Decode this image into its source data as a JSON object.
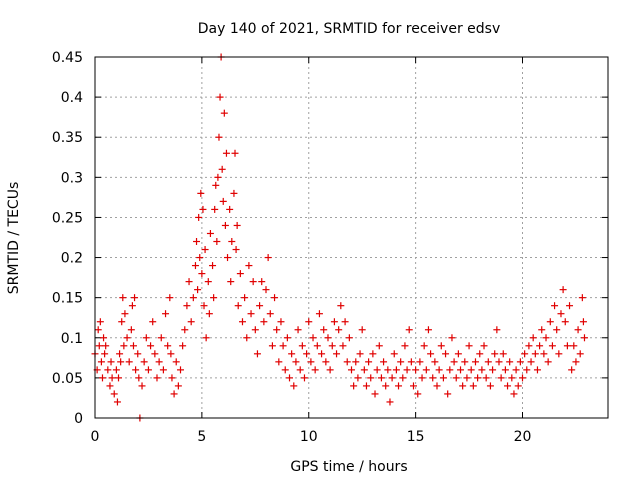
{
  "chart_data": {
    "type": "scatter",
    "title": "Day 140 of 2021, SRMTID for receiver edsv",
    "xlabel": "GPS time / hours",
    "ylabel": "SRMTID / TECUs",
    "xlim": [
      0,
      24
    ],
    "ylim": [
      0,
      0.45
    ],
    "xticks": [
      "0",
      "5",
      "10",
      "15",
      "20"
    ],
    "yticks": [
      "0",
      "0.05",
      "0.1",
      "0.15",
      "0.2",
      "0.25",
      "0.3",
      "0.35",
      "0.4",
      "0.45"
    ],
    "grid": true,
    "marker": "+",
    "color": "#e00000",
    "series": [
      {
        "name": "SRMTID",
        "points": [
          [
            0.0,
            0.08
          ],
          [
            0.1,
            0.06
          ],
          [
            0.15,
            0.11
          ],
          [
            0.2,
            0.09
          ],
          [
            0.25,
            0.12
          ],
          [
            0.3,
            0.07
          ],
          [
            0.35,
            0.05
          ],
          [
            0.4,
            0.1
          ],
          [
            0.45,
            0.08
          ],
          [
            0.5,
            0.09
          ],
          [
            0.6,
            0.06
          ],
          [
            0.7,
            0.04
          ],
          [
            0.75,
            0.07
          ],
          [
            0.8,
            0.05
          ],
          [
            0.9,
            0.03
          ],
          [
            1.0,
            0.06
          ],
          [
            1.05,
            0.02
          ],
          [
            1.1,
            0.05
          ],
          [
            1.15,
            0.08
          ],
          [
            1.2,
            0.07
          ],
          [
            1.25,
            0.12
          ],
          [
            1.3,
            0.15
          ],
          [
            1.35,
            0.09
          ],
          [
            1.4,
            0.13
          ],
          [
            1.5,
            0.1
          ],
          [
            1.6,
            0.07
          ],
          [
            1.7,
            0.11
          ],
          [
            1.75,
            0.14
          ],
          [
            1.8,
            0.09
          ],
          [
            1.85,
            0.15
          ],
          [
            1.9,
            0.06
          ],
          [
            2.0,
            0.08
          ],
          [
            2.05,
            0.05
          ],
          [
            2.1,
            0.0
          ],
          [
            2.2,
            0.04
          ],
          [
            2.3,
            0.07
          ],
          [
            2.4,
            0.1
          ],
          [
            2.5,
            0.06
          ],
          [
            2.6,
            0.09
          ],
          [
            2.7,
            0.12
          ],
          [
            2.8,
            0.08
          ],
          [
            2.9,
            0.05
          ],
          [
            3.0,
            0.07
          ],
          [
            3.1,
            0.1
          ],
          [
            3.2,
            0.06
          ],
          [
            3.3,
            0.13
          ],
          [
            3.4,
            0.09
          ],
          [
            3.5,
            0.15
          ],
          [
            3.55,
            0.08
          ],
          [
            3.6,
            0.05
          ],
          [
            3.7,
            0.03
          ],
          [
            3.8,
            0.07
          ],
          [
            3.9,
            0.04
          ],
          [
            4.0,
            0.06
          ],
          [
            4.1,
            0.09
          ],
          [
            4.2,
            0.11
          ],
          [
            4.3,
            0.14
          ],
          [
            4.4,
            0.17
          ],
          [
            4.5,
            0.12
          ],
          [
            4.6,
            0.15
          ],
          [
            4.7,
            0.19
          ],
          [
            4.75,
            0.22
          ],
          [
            4.8,
            0.16
          ],
          [
            4.85,
            0.25
          ],
          [
            4.9,
            0.2
          ],
          [
            4.95,
            0.28
          ],
          [
            5.0,
            0.18
          ],
          [
            5.05,
            0.26
          ],
          [
            5.1,
            0.14
          ],
          [
            5.15,
            0.21
          ],
          [
            5.2,
            0.1
          ],
          [
            5.3,
            0.17
          ],
          [
            5.35,
            0.13
          ],
          [
            5.4,
            0.23
          ],
          [
            5.5,
            0.19
          ],
          [
            5.55,
            0.15
          ],
          [
            5.6,
            0.26
          ],
          [
            5.65,
            0.29
          ],
          [
            5.7,
            0.22
          ],
          [
            5.75,
            0.3
          ],
          [
            5.8,
            0.35
          ],
          [
            5.85,
            0.4
          ],
          [
            5.9,
            0.45
          ],
          [
            5.95,
            0.31
          ],
          [
            6.0,
            0.27
          ],
          [
            6.05,
            0.38
          ],
          [
            6.1,
            0.24
          ],
          [
            6.15,
            0.33
          ],
          [
            6.2,
            0.2
          ],
          [
            6.3,
            0.26
          ],
          [
            6.35,
            0.17
          ],
          [
            6.4,
            0.22
          ],
          [
            6.5,
            0.28
          ],
          [
            6.55,
            0.33
          ],
          [
            6.6,
            0.21
          ],
          [
            6.65,
            0.24
          ],
          [
            6.7,
            0.14
          ],
          [
            6.8,
            0.18
          ],
          [
            6.9,
            0.12
          ],
          [
            7.0,
            0.15
          ],
          [
            7.1,
            0.1
          ],
          [
            7.2,
            0.19
          ],
          [
            7.3,
            0.13
          ],
          [
            7.4,
            0.17
          ],
          [
            7.5,
            0.11
          ],
          [
            7.6,
            0.08
          ],
          [
            7.7,
            0.14
          ],
          [
            7.8,
            0.17
          ],
          [
            7.9,
            0.12
          ],
          [
            8.0,
            0.16
          ],
          [
            8.1,
            0.2
          ],
          [
            8.2,
            0.13
          ],
          [
            8.3,
            0.09
          ],
          [
            8.4,
            0.15
          ],
          [
            8.5,
            0.11
          ],
          [
            8.6,
            0.07
          ],
          [
            8.7,
            0.12
          ],
          [
            8.8,
            0.09
          ],
          [
            8.9,
            0.06
          ],
          [
            9.0,
            0.1
          ],
          [
            9.1,
            0.05
          ],
          [
            9.2,
            0.08
          ],
          [
            9.3,
            0.04
          ],
          [
            9.4,
            0.07
          ],
          [
            9.5,
            0.11
          ],
          [
            9.6,
            0.06
          ],
          [
            9.7,
            0.09
          ],
          [
            9.8,
            0.05
          ],
          [
            9.9,
            0.08
          ],
          [
            10.0,
            0.12
          ],
          [
            10.1,
            0.07
          ],
          [
            10.2,
            0.1
          ],
          [
            10.3,
            0.06
          ],
          [
            10.4,
            0.09
          ],
          [
            10.5,
            0.13
          ],
          [
            10.6,
            0.08
          ],
          [
            10.7,
            0.11
          ],
          [
            10.8,
            0.07
          ],
          [
            10.9,
            0.1
          ],
          [
            11.0,
            0.06
          ],
          [
            11.1,
            0.09
          ],
          [
            11.2,
            0.12
          ],
          [
            11.3,
            0.08
          ],
          [
            11.4,
            0.11
          ],
          [
            11.5,
            0.14
          ],
          [
            11.6,
            0.09
          ],
          [
            11.7,
            0.12
          ],
          [
            11.8,
            0.07
          ],
          [
            11.9,
            0.1
          ],
          [
            12.0,
            0.06
          ],
          [
            12.1,
            0.04
          ],
          [
            12.2,
            0.07
          ],
          [
            12.3,
            0.05
          ],
          [
            12.4,
            0.08
          ],
          [
            12.5,
            0.11
          ],
          [
            12.6,
            0.06
          ],
          [
            12.7,
            0.04
          ],
          [
            12.8,
            0.07
          ],
          [
            12.9,
            0.05
          ],
          [
            13.0,
            0.08
          ],
          [
            13.1,
            0.03
          ],
          [
            13.2,
            0.06
          ],
          [
            13.3,
            0.09
          ],
          [
            13.4,
            0.05
          ],
          [
            13.5,
            0.07
          ],
          [
            13.6,
            0.04
          ],
          [
            13.7,
            0.06
          ],
          [
            13.8,
            0.02
          ],
          [
            13.9,
            0.05
          ],
          [
            14.0,
            0.08
          ],
          [
            14.1,
            0.06
          ],
          [
            14.2,
            0.04
          ],
          [
            14.3,
            0.07
          ],
          [
            14.4,
            0.05
          ],
          [
            14.5,
            0.09
          ],
          [
            14.6,
            0.06
          ],
          [
            14.7,
            0.11
          ],
          [
            14.8,
            0.07
          ],
          [
            14.9,
            0.04
          ],
          [
            15.0,
            0.06
          ],
          [
            15.1,
            0.03
          ],
          [
            15.2,
            0.07
          ],
          [
            15.3,
            0.05
          ],
          [
            15.4,
            0.09
          ],
          [
            15.5,
            0.06
          ],
          [
            15.6,
            0.11
          ],
          [
            15.7,
            0.08
          ],
          [
            15.8,
            0.05
          ],
          [
            15.9,
            0.07
          ],
          [
            16.0,
            0.04
          ],
          [
            16.1,
            0.06
          ],
          [
            16.2,
            0.09
          ],
          [
            16.3,
            0.05
          ],
          [
            16.4,
            0.08
          ],
          [
            16.5,
            0.03
          ],
          [
            16.6,
            0.06
          ],
          [
            16.7,
            0.1
          ],
          [
            16.8,
            0.07
          ],
          [
            16.9,
            0.05
          ],
          [
            17.0,
            0.08
          ],
          [
            17.1,
            0.06
          ],
          [
            17.2,
            0.04
          ],
          [
            17.3,
            0.07
          ],
          [
            17.4,
            0.05
          ],
          [
            17.5,
            0.09
          ],
          [
            17.6,
            0.06
          ],
          [
            17.7,
            0.04
          ],
          [
            17.8,
            0.07
          ],
          [
            17.9,
            0.05
          ],
          [
            18.0,
            0.08
          ],
          [
            18.1,
            0.06
          ],
          [
            18.2,
            0.09
          ],
          [
            18.3,
            0.05
          ],
          [
            18.4,
            0.07
          ],
          [
            18.5,
            0.04
          ],
          [
            18.6,
            0.06
          ],
          [
            18.7,
            0.08
          ],
          [
            18.8,
            0.11
          ],
          [
            18.9,
            0.07
          ],
          [
            19.0,
            0.05
          ],
          [
            19.1,
            0.08
          ],
          [
            19.2,
            0.06
          ],
          [
            19.3,
            0.04
          ],
          [
            19.4,
            0.07
          ],
          [
            19.5,
            0.05
          ],
          [
            19.6,
            0.03
          ],
          [
            19.7,
            0.06
          ],
          [
            19.8,
            0.04
          ],
          [
            19.9,
            0.07
          ],
          [
            20.0,
            0.05
          ],
          [
            20.1,
            0.08
          ],
          [
            20.2,
            0.06
          ],
          [
            20.3,
            0.09
          ],
          [
            20.4,
            0.07
          ],
          [
            20.5,
            0.1
          ],
          [
            20.6,
            0.08
          ],
          [
            20.7,
            0.06
          ],
          [
            20.8,
            0.09
          ],
          [
            20.9,
            0.11
          ],
          [
            21.0,
            0.08
          ],
          [
            21.1,
            0.1
          ],
          [
            21.2,
            0.07
          ],
          [
            21.3,
            0.12
          ],
          [
            21.4,
            0.09
          ],
          [
            21.5,
            0.14
          ],
          [
            21.6,
            0.11
          ],
          [
            21.7,
            0.08
          ],
          [
            21.8,
            0.13
          ],
          [
            21.9,
            0.16
          ],
          [
            22.0,
            0.12
          ],
          [
            22.1,
            0.09
          ],
          [
            22.2,
            0.14
          ],
          [
            22.3,
            0.06
          ],
          [
            22.4,
            0.09
          ],
          [
            22.5,
            0.07
          ],
          [
            22.6,
            0.11
          ],
          [
            22.7,
            0.08
          ],
          [
            22.8,
            0.15
          ],
          [
            22.85,
            0.12
          ],
          [
            22.9,
            0.1
          ]
        ]
      }
    ]
  }
}
